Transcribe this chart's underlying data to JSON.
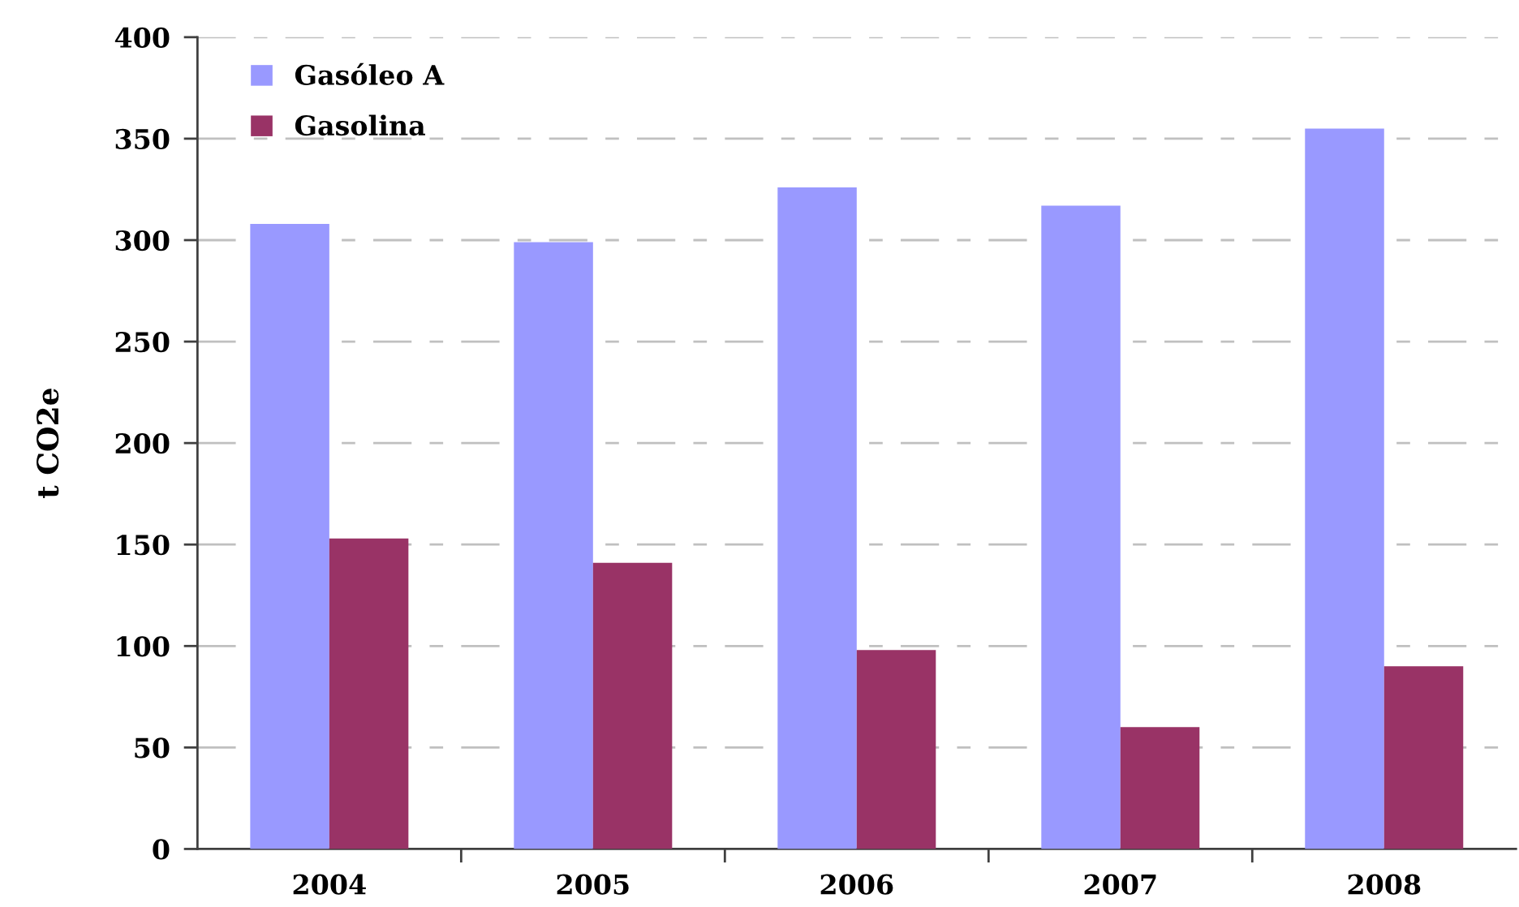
{
  "chart_data": {
    "type": "bar",
    "ylabel": "t CO2e",
    "categories": [
      "2004",
      "2005",
      "2006",
      "2007",
      "2008"
    ],
    "series": [
      {
        "name": "Gasóleo A",
        "color": "#9999ff",
        "values": [
          308,
          299,
          326,
          317,
          355
        ]
      },
      {
        "name": "Gasolina",
        "color": "#993366",
        "values": [
          153,
          141,
          98,
          60,
          90
        ]
      }
    ],
    "ylim": [
      0,
      400
    ],
    "yticks": [
      0,
      50,
      100,
      150,
      200,
      250,
      300,
      350,
      400
    ],
    "grid": "y",
    "legend": "top left"
  }
}
